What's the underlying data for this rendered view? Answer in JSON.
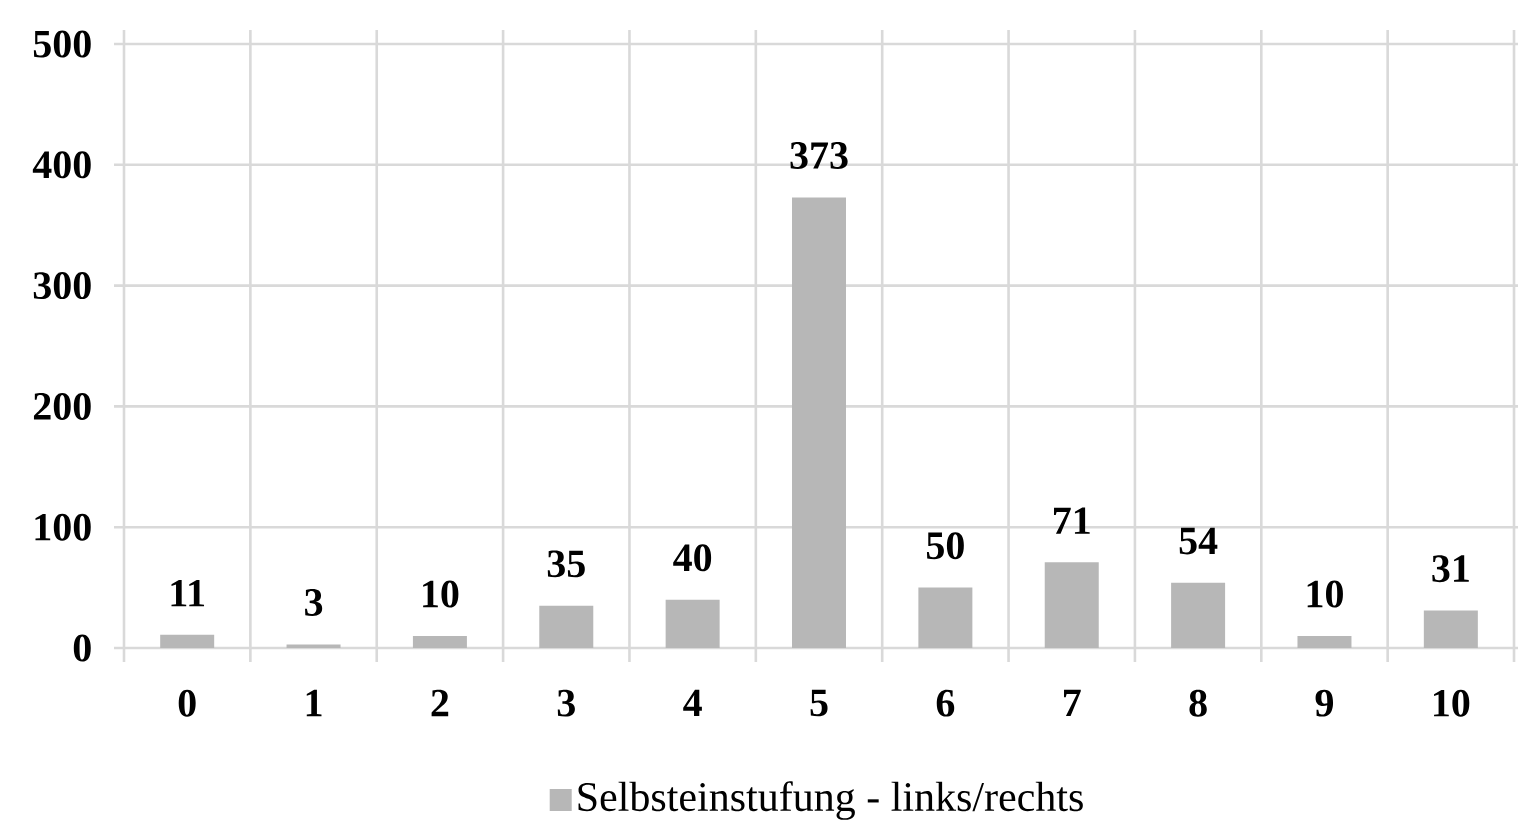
{
  "chart_data": {
    "type": "bar",
    "categories": [
      "0",
      "1",
      "2",
      "3",
      "4",
      "5",
      "6",
      "7",
      "8",
      "9",
      "10"
    ],
    "series": [
      {
        "name": "Selbsteinstufung - links/rechts",
        "color": "#b7b7b7",
        "values": [
          11,
          3,
          10,
          35,
          40,
          373,
          50,
          71,
          54,
          10,
          31
        ]
      }
    ],
    "ylim": [
      0,
      500
    ],
    "yticks": [
      0,
      100,
      200,
      300,
      400,
      500
    ],
    "grid": true,
    "legend": "bottom",
    "data_labels": true
  }
}
